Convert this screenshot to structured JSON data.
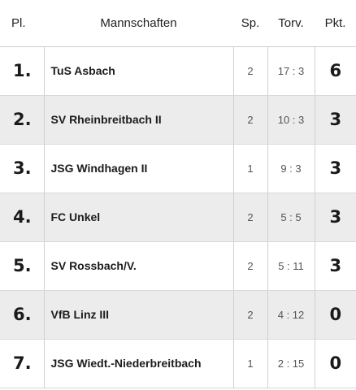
{
  "table": {
    "headers": {
      "rank": "Pl.",
      "team": "Mannschaften",
      "games": "Sp.",
      "goals": "Torv.",
      "points": "Pkt."
    },
    "rows": [
      {
        "rank": "1.",
        "team": "TuS Asbach",
        "games": "2",
        "goals": "17 : 3",
        "points": "6"
      },
      {
        "rank": "2.",
        "team": "SV Rheinbreitbach II",
        "games": "2",
        "goals": "10 : 3",
        "points": "3"
      },
      {
        "rank": "3.",
        "team": "JSG Windhagen II",
        "games": "1",
        "goals": "9 : 3",
        "points": "3"
      },
      {
        "rank": "4.",
        "team": "FC Unkel",
        "games": "2",
        "goals": "5 : 5",
        "points": "3"
      },
      {
        "rank": "5.",
        "team": "SV Rossbach/V.",
        "games": "2",
        "goals": "5 : 11",
        "points": "3"
      },
      {
        "rank": "6.",
        "team": "VfB Linz III",
        "games": "2",
        "goals": "4 : 12",
        "points": "0"
      },
      {
        "rank": "7.",
        "team": "JSG Wiedt.-Niederbreitbach",
        "games": "1",
        "goals": "2 : 15",
        "points": "0"
      }
    ]
  }
}
